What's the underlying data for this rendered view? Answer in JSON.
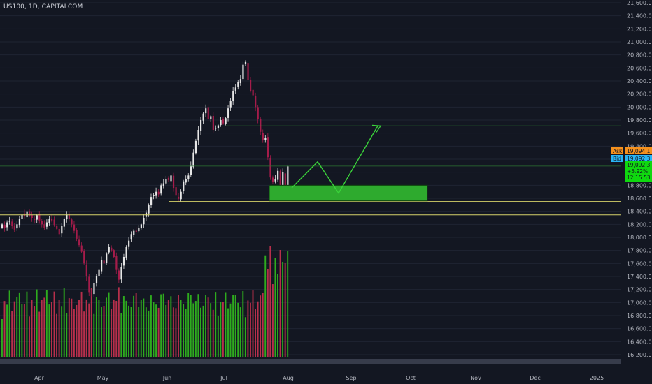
{
  "header": {
    "symbol_title": "US100, 1D, CAPITALCOM"
  },
  "price_axis": {
    "min": 16200,
    "max": 21600,
    "step": 200,
    "labels": [
      "21,600.0",
      "21,400.0",
      "21,200.0",
      "21,000.0",
      "20,800.0",
      "20,600.0",
      "20,400.0",
      "20,200.0",
      "20,000.0",
      "19,800.0",
      "19,600.0",
      "19,400.0",
      "19,200.0",
      "19,000.0",
      "18,800.0",
      "18,600.0",
      "18,400.0",
      "18,200.0",
      "18,000.0",
      "17,800.0",
      "17,600.0",
      "17,400.0",
      "17,200.0",
      "17,000.0",
      "16,800.0",
      "16,600.0",
      "16,400.0",
      "16,200.0"
    ]
  },
  "time_axis": {
    "labels": [
      "Apr",
      "May",
      "Jun",
      "Jul",
      "Aug",
      "Sep",
      "Oct",
      "Nov",
      "Dec",
      "2025"
    ]
  },
  "price_tags": {
    "ask_label": "Ask",
    "ask_value": "19,094.1",
    "bid_label": "Bid",
    "bid_value": "19,092.3",
    "last_value": "19,092.3",
    "change_pct": "+5.92%",
    "countdown": "12:15:53"
  },
  "colors": {
    "background": "#131722",
    "up": "#26a69a",
    "down": "#ef5350",
    "candle_up": "#e6e6e6",
    "candle_down": "#a51c4a",
    "vol_up": "#2fb31f",
    "vol_down": "#c0304e",
    "support_line": "#d6d26a",
    "target_line": "#34c234",
    "zone_fill": "#2eaa2e",
    "ask_tag": "#f5911e",
    "bid_tag": "#29b6f6",
    "last_tag": "#0fd80f"
  },
  "chart_data": {
    "type": "candlestick",
    "symbol": "US100",
    "timeframe": "1D",
    "approx_range": {
      "low": 17000,
      "high": 20750
    },
    "levels": {
      "target": 19710,
      "current_price": 19094,
      "support_upper": 18550,
      "support_lower": 18345
    },
    "demand_zone": {
      "top": 18800,
      "bottom": 18560
    },
    "projection_path": [
      18760,
      19160,
      18680,
      19710
    ],
    "key_prices": {
      "april_low": 17050,
      "july_high": 20750,
      "august_low": 18560
    },
    "closes": [
      18200,
      18150,
      18230,
      18250,
      18180,
      18120,
      18200,
      18280,
      18350,
      18320,
      18400,
      18330,
      18300,
      18270,
      18340,
      18260,
      18200,
      18150,
      18230,
      18290,
      18260,
      18190,
      18130,
      18050,
      18180,
      18280,
      18350,
      18290,
      18200,
      18100,
      17980,
      17880,
      17780,
      17600,
      17400,
      17160,
      17150,
      17300,
      17400,
      17500,
      17650,
      17600,
      17750,
      17850,
      17800,
      17700,
      17500,
      17350,
      17550,
      17700,
      17850,
      17950,
      18050,
      18100,
      18080,
      18150,
      18200,
      18300,
      18380,
      18500,
      18620,
      18650,
      18700,
      18660,
      18800,
      18830,
      18900,
      18880,
      18950,
      18760,
      18640,
      18590,
      18700,
      18860,
      18900,
      18950,
      19100,
      19300,
      19480,
      19650,
      19800,
      19900,
      19980,
      19820,
      19860,
      19650,
      19680,
      19720,
      19800,
      19750,
      19830,
      19980,
      20100,
      20250,
      20300,
      20380,
      20430,
      20650,
      20690,
      20420,
      20250,
      20180,
      20000,
      19810,
      19620,
      19500,
      19530,
      19230,
      18920,
      18850,
      18900,
      19020,
      18730,
      19000,
      18780,
      19090
    ]
  }
}
